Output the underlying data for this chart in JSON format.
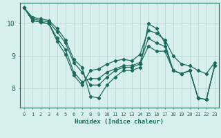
{
  "xlabel": "Humidex (Indice chaleur)",
  "bg_color": "#d8f0ec",
  "grid_color": "#b8d8d0",
  "line_color": "#1a6b5a",
  "xlim": [
    -0.5,
    23.5
  ],
  "ylim": [
    7.4,
    10.65
  ],
  "yticks": [
    8,
    9,
    10
  ],
  "xticks": [
    0,
    1,
    2,
    3,
    4,
    5,
    6,
    7,
    8,
    9,
    10,
    11,
    12,
    13,
    14,
    15,
    16,
    17,
    18,
    19,
    20,
    21,
    22,
    23
  ],
  "lines": [
    [
      10.5,
      10.2,
      10.15,
      10.1,
      9.85,
      9.5,
      8.9,
      8.65,
      7.75,
      7.7,
      8.1,
      8.35,
      8.55,
      8.55,
      8.65,
      10.0,
      9.85,
      9.4,
      8.55,
      8.45,
      8.55,
      7.7,
      7.65,
      8.7
    ],
    [
      10.5,
      10.15,
      10.1,
      10.05,
      9.75,
      9.4,
      8.8,
      8.5,
      8.1,
      8.1,
      8.35,
      8.55,
      8.65,
      8.65,
      8.75,
      9.3,
      9.15,
      9.15,
      8.55,
      8.45,
      8.55,
      7.7,
      7.65,
      8.7
    ],
    [
      10.5,
      10.1,
      10.05,
      10.0,
      9.55,
      9.2,
      8.5,
      8.2,
      8.3,
      8.3,
      8.5,
      8.6,
      8.7,
      8.7,
      8.8,
      9.55,
      9.4,
      9.3,
      8.55,
      8.45,
      8.55,
      7.7,
      7.65,
      8.7
    ],
    [
      10.5,
      10.1,
      10.05,
      10.0,
      9.45,
      9.05,
      8.4,
      8.1,
      8.55,
      8.6,
      8.75,
      8.85,
      8.9,
      8.85,
      9.05,
      9.8,
      9.7,
      9.5,
      9.0,
      8.75,
      8.7,
      8.55,
      8.45,
      8.8
    ]
  ]
}
